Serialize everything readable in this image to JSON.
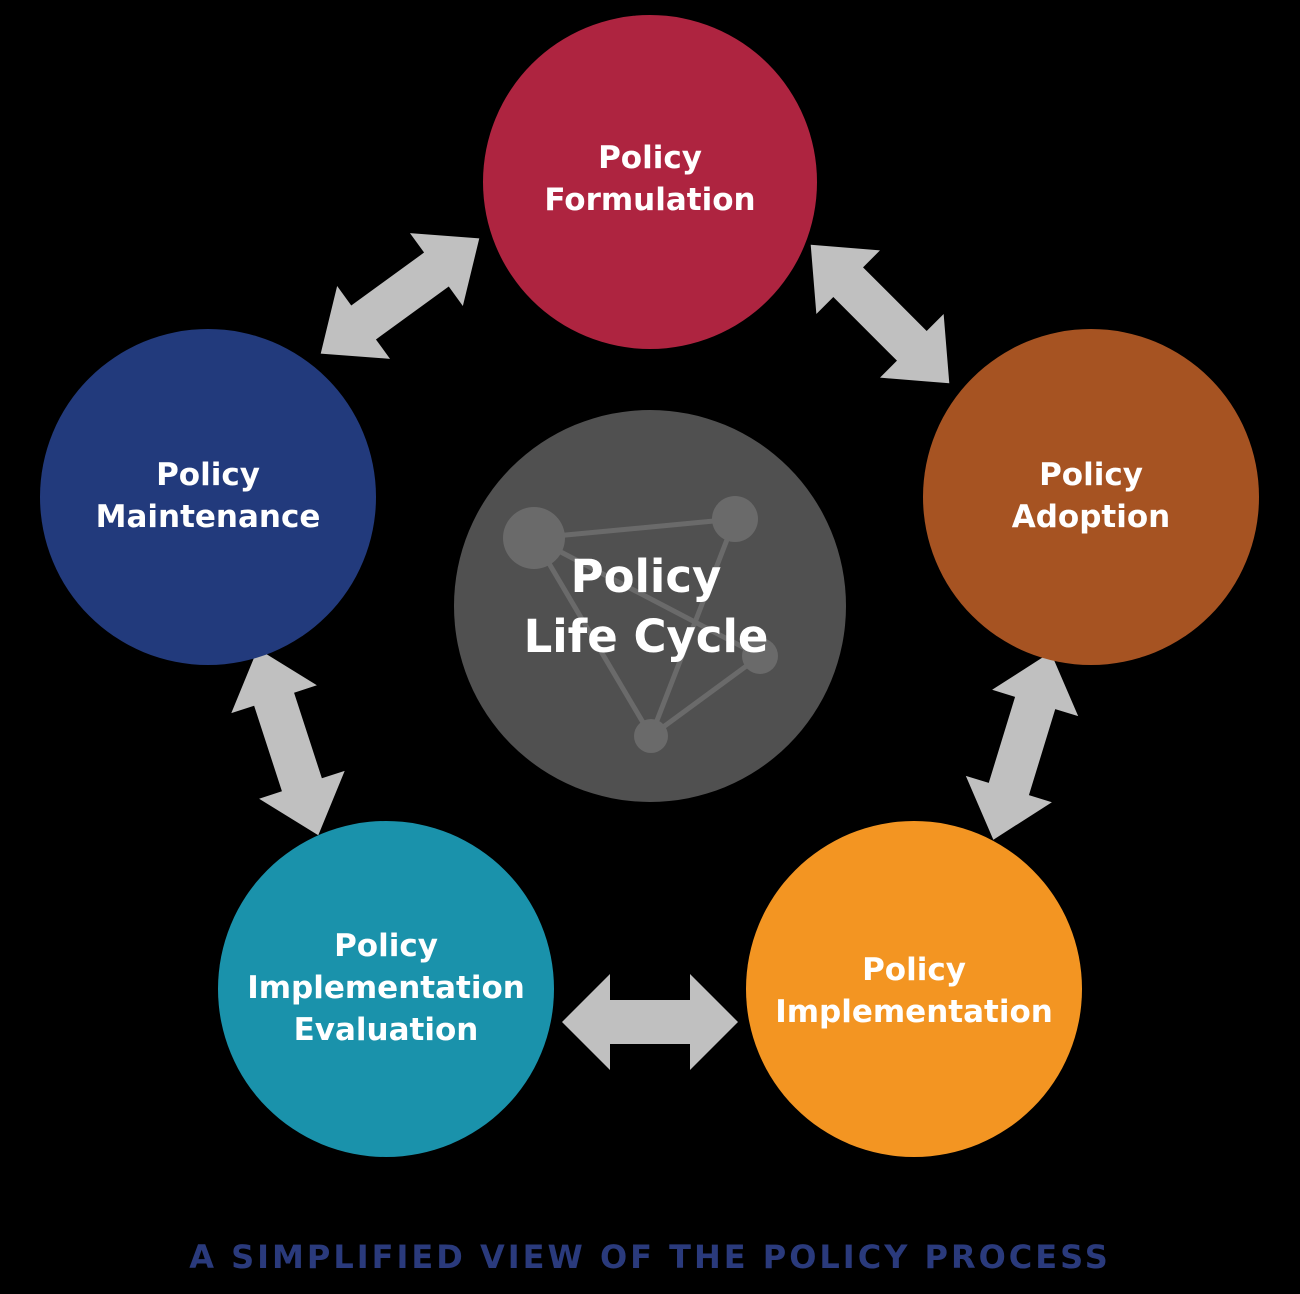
{
  "colors": {
    "background": "#000000",
    "arrow": "#c0c0c0",
    "center": "#505050",
    "center_network": "#6a6a6a",
    "formulation": "#ae2440",
    "adoption": "#a65322",
    "implementation": "#f39522",
    "evaluation": "#1a92ab",
    "maintenance": "#223a7c",
    "caption": "#2a3a7c"
  },
  "center": {
    "line1": "Policy",
    "line2": "Life Cycle"
  },
  "nodes": {
    "formulation": {
      "line1": "Policy",
      "line2": "Formulation"
    },
    "adoption": {
      "line1": "Policy",
      "line2": "Adoption"
    },
    "implementation": {
      "line1": "Policy",
      "line2": "Implementation"
    },
    "evaluation": {
      "line1": "Policy",
      "line2": "Implementation",
      "line3": "Evaluation"
    },
    "maintenance": {
      "line1": "Policy",
      "line2": "Maintenance"
    }
  },
  "caption": "A SIMPLIFIED VIEW OF THE POLICY PROCESS"
}
